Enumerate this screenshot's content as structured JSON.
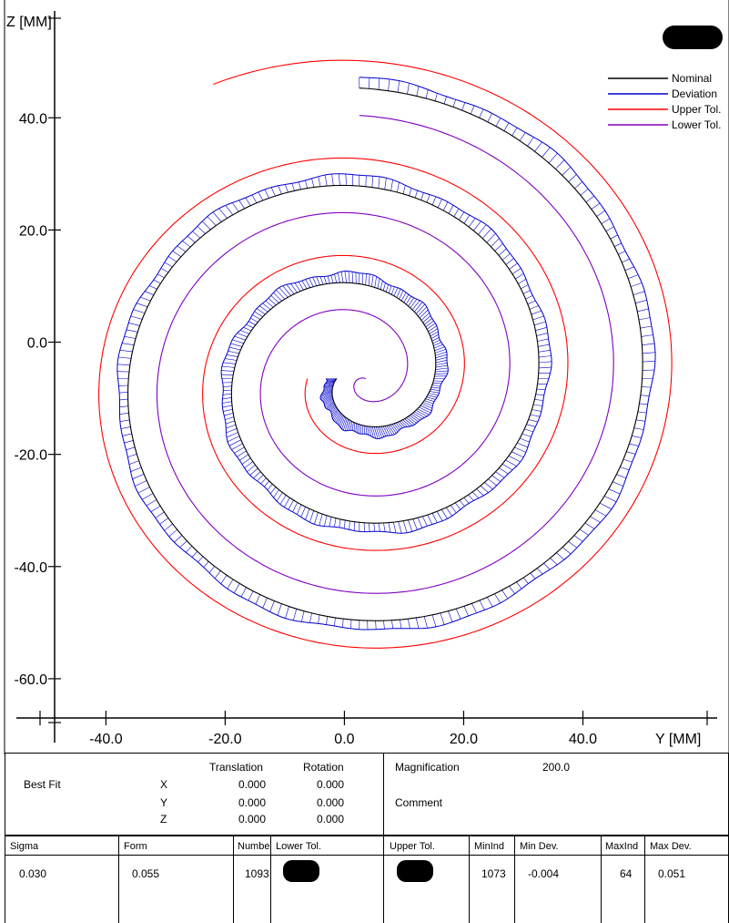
{
  "chart_data": {
    "type": "line",
    "xlabel": "Y [MM]",
    "ylabel": "Z [MM]",
    "x_ticks": [
      "-40.0",
      "-20.0",
      "0.0",
      "20.0",
      "40.0"
    ],
    "x_tick_values": [
      -40,
      -20,
      0,
      20,
      40
    ],
    "y_ticks": [
      "40.0",
      "20.0",
      "0.0",
      "-20.0",
      "-40.0",
      "-60.0"
    ],
    "y_tick_values": [
      40,
      20,
      0,
      -20,
      -40,
      -60
    ],
    "xlim": [
      -57,
      64.5
    ],
    "ylim": [
      -67,
      61
    ],
    "legend_position": "top-right",
    "series": [
      {
        "name": "Nominal",
        "color": "#000000",
        "r_start_mm": 3.8,
        "r_end_mm": 51.8,
        "theta_start_deg": 180,
        "theta_end_deg": 1170
      },
      {
        "name": "Deviation",
        "color": "#0000cc",
        "r_start_mm": 3.8,
        "r_end_mm": 51.8,
        "theta_start_deg": 180,
        "theta_end_deg": 1170
      },
      {
        "name": "Upper Tol.",
        "color": "#ff0000",
        "r_start_mm": 3.8,
        "r_end_mm": 51.8,
        "theta_start_deg": 180,
        "theta_end_deg": 1170
      },
      {
        "name": "Lower Tol.",
        "color": "#8000c0",
        "r_start_mm": 3.8,
        "r_end_mm": 51.8,
        "theta_start_deg": 180,
        "theta_end_deg": 1170
      }
    ],
    "spiral_center_mm": [
      2.5,
      -6.5
    ],
    "magnification": 200.0
  },
  "info": {
    "best_fit_label": "Best Fit",
    "translation_label": "Translation",
    "rotation_label": "Rotation",
    "rows": [
      {
        "axis": "X",
        "translation": "0.000",
        "rotation": "0.000"
      },
      {
        "axis": "Y",
        "translation": "0.000",
        "rotation": "0.000"
      },
      {
        "axis": "Z",
        "translation": "0.000",
        "rotation": "0.000"
      }
    ],
    "magnification_label": "Magnification",
    "magnification_value": "200.0",
    "comment_label": "Comment"
  },
  "results": {
    "headers": {
      "sigma": "Sigma",
      "form": "Form",
      "number": "Numbe",
      "lower_tol": "Lower Tol.",
      "upper_tol": "Upper Tol.",
      "minind": "MinInd",
      "min_dev": "Min Dev.",
      "maxind": "MaxInd",
      "max_dev": "Max Dev."
    },
    "values": {
      "sigma": "0.030",
      "form": "0.055",
      "number": "1093",
      "minind": "1073",
      "min_dev": "-0.004",
      "maxind": "64",
      "max_dev": "0.051"
    }
  }
}
